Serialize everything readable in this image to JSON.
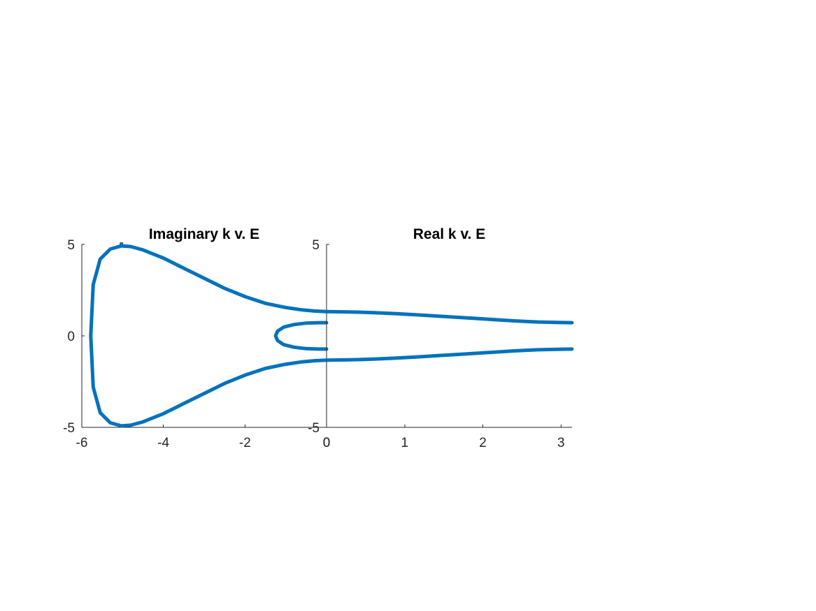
{
  "chart_data": [
    {
      "type": "line",
      "title": "Imaginary k v. E",
      "xlabel": "",
      "ylabel": "",
      "xlim": [
        -6,
        0
      ],
      "ylim": [
        -5,
        5
      ],
      "xticks": [
        -6,
        -4,
        -2,
        0
      ],
      "yticks": [
        -5,
        0,
        5
      ],
      "grid": false,
      "color": "#0072BD",
      "series": [
        {
          "x": [
            0,
            -0.3,
            -0.6,
            -1.0,
            -1.5,
            -2.0,
            -2.5,
            -3.0,
            -3.5,
            -4.0,
            -4.5,
            -4.8,
            -5.03,
            -5.3,
            -5.55,
            -5.72,
            -5.78,
            -5.72,
            -5.55,
            -5.3,
            -5.03,
            -4.8,
            -4.5,
            -4.0,
            -3.5,
            -3.0,
            -2.5,
            -2.0,
            -1.5,
            -1.0,
            -0.6,
            -0.3,
            0
          ],
          "y": [
            1.33,
            1.36,
            1.42,
            1.55,
            1.78,
            2.15,
            2.6,
            3.15,
            3.7,
            4.25,
            4.7,
            4.88,
            4.92,
            4.75,
            4.2,
            2.8,
            0.0,
            -2.8,
            -4.2,
            -4.75,
            -4.92,
            -4.88,
            -4.7,
            -4.25,
            -3.7,
            -3.15,
            -2.6,
            -2.15,
            -1.78,
            -1.55,
            -1.42,
            -1.36,
            -1.33
          ]
        },
        {
          "x": [
            0,
            -0.2,
            -0.5,
            -0.8,
            -1.05,
            -1.2,
            -1.25,
            -1.2,
            -1.05,
            -0.8,
            -0.5,
            -0.2,
            0
          ],
          "y": [
            0.72,
            0.72,
            0.7,
            0.62,
            0.48,
            0.26,
            0.0,
            -0.26,
            -0.48,
            -0.62,
            -0.7,
            -0.72,
            -0.72
          ]
        },
        {
          "x": [
            -5.03,
            -5.03
          ],
          "y": [
            4.92,
            5.05
          ]
        }
      ]
    },
    {
      "type": "line",
      "title": "Real k v. E",
      "xlabel": "",
      "ylabel": "",
      "xlim": [
        0,
        3.14
      ],
      "ylim": [
        -5,
        5
      ],
      "xticks": [
        0,
        1,
        2,
        3
      ],
      "yticks": [
        -5,
        5
      ],
      "grid": false,
      "color": "#0072BD",
      "series": [
        {
          "x": [
            0,
            0.3,
            0.6,
            0.9,
            1.2,
            1.5,
            1.8,
            2.1,
            2.4,
            2.7,
            3.0,
            3.14
          ],
          "y": [
            1.33,
            1.31,
            1.27,
            1.21,
            1.14,
            1.06,
            0.98,
            0.9,
            0.82,
            0.76,
            0.73,
            0.72
          ]
        },
        {
          "x": [
            0,
            0.3,
            0.6,
            0.9,
            1.2,
            1.5,
            1.8,
            2.1,
            2.4,
            2.7,
            3.0,
            3.14
          ],
          "y": [
            -1.33,
            -1.31,
            -1.27,
            -1.21,
            -1.14,
            -1.06,
            -0.98,
            -0.9,
            -0.82,
            -0.76,
            -0.73,
            -0.72
          ]
        }
      ]
    }
  ]
}
